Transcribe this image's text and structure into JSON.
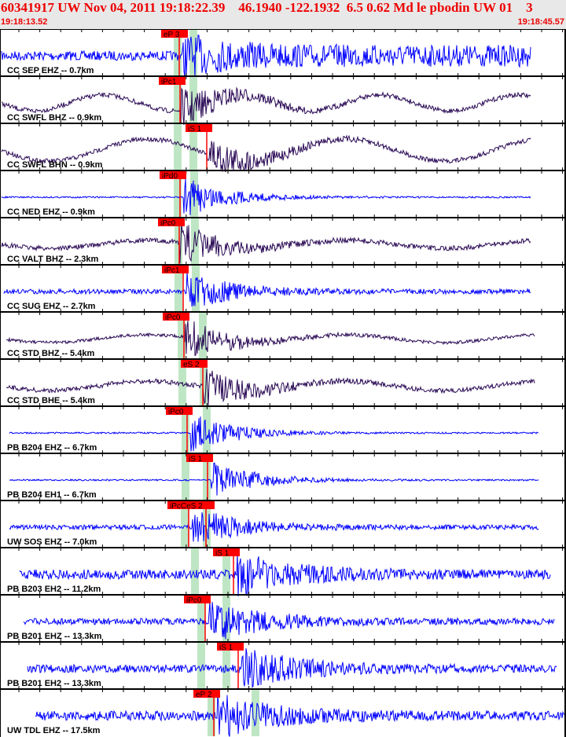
{
  "header": {
    "title": "60341917 UW Nov 04, 2011 19:18:22.39    46.1940 -122.1932  6.5 0.62 Md le pbodin UW 01    3",
    "start_time": "19:18:13.52",
    "end_time": "19:18:45.57"
  },
  "colors": {
    "short_period": "#0000ff",
    "broadband": "#2a0a55",
    "pick": "#ff0000",
    "window": "#bfe6c4"
  },
  "traces": [
    {
      "label": "CC SEP EHZ -- 0.7km",
      "picks": [
        "eP 3"
      ]
    },
    {
      "label": "CC SWFL BHZ -- 0.9km",
      "picks": [
        "iPc1"
      ]
    },
    {
      "label": "CC SWFL BHN -- 0.9km",
      "picks": [
        "iS 1"
      ]
    },
    {
      "label": "CC NED EHZ -- 0.9km",
      "picks": [
        "iPd0"
      ]
    },
    {
      "label": "CC VALT BHZ -- 2.3km",
      "picks": [
        "iPc0"
      ]
    },
    {
      "label": "CC SUG EHZ -- 2.7km",
      "picks": [
        "iPc1"
      ]
    },
    {
      "label": "CC STD BHZ -- 5.4km",
      "picks": [
        "iPc0"
      ]
    },
    {
      "label": "CC STD BHE -- 5.4km",
      "picks": [
        "eS 2"
      ]
    },
    {
      "label": "PB B204 EHZ -- 6.7km",
      "picks": [
        "iPc0"
      ]
    },
    {
      "label": "PB B204 EH1 -- 6.7km",
      "picks": [
        "iS 1"
      ]
    },
    {
      "label": "UW SOS EHZ -- 7.0km",
      "picks": [
        "iPcCeS 2"
      ]
    },
    {
      "label": "PB B203 EH2 -- 11.2km",
      "picks": [
        "iS 1"
      ]
    },
    {
      "label": "PB B201 EHZ -- 13.3km",
      "picks": [
        "iPc0"
      ]
    },
    {
      "label": "PB B201 EH2 -- 13.3km",
      "picks": [
        "iS 1"
      ]
    },
    {
      "label": "UW TDL EHZ -- 17.5km",
      "picks": [
        "eP 2"
      ]
    }
  ]
}
